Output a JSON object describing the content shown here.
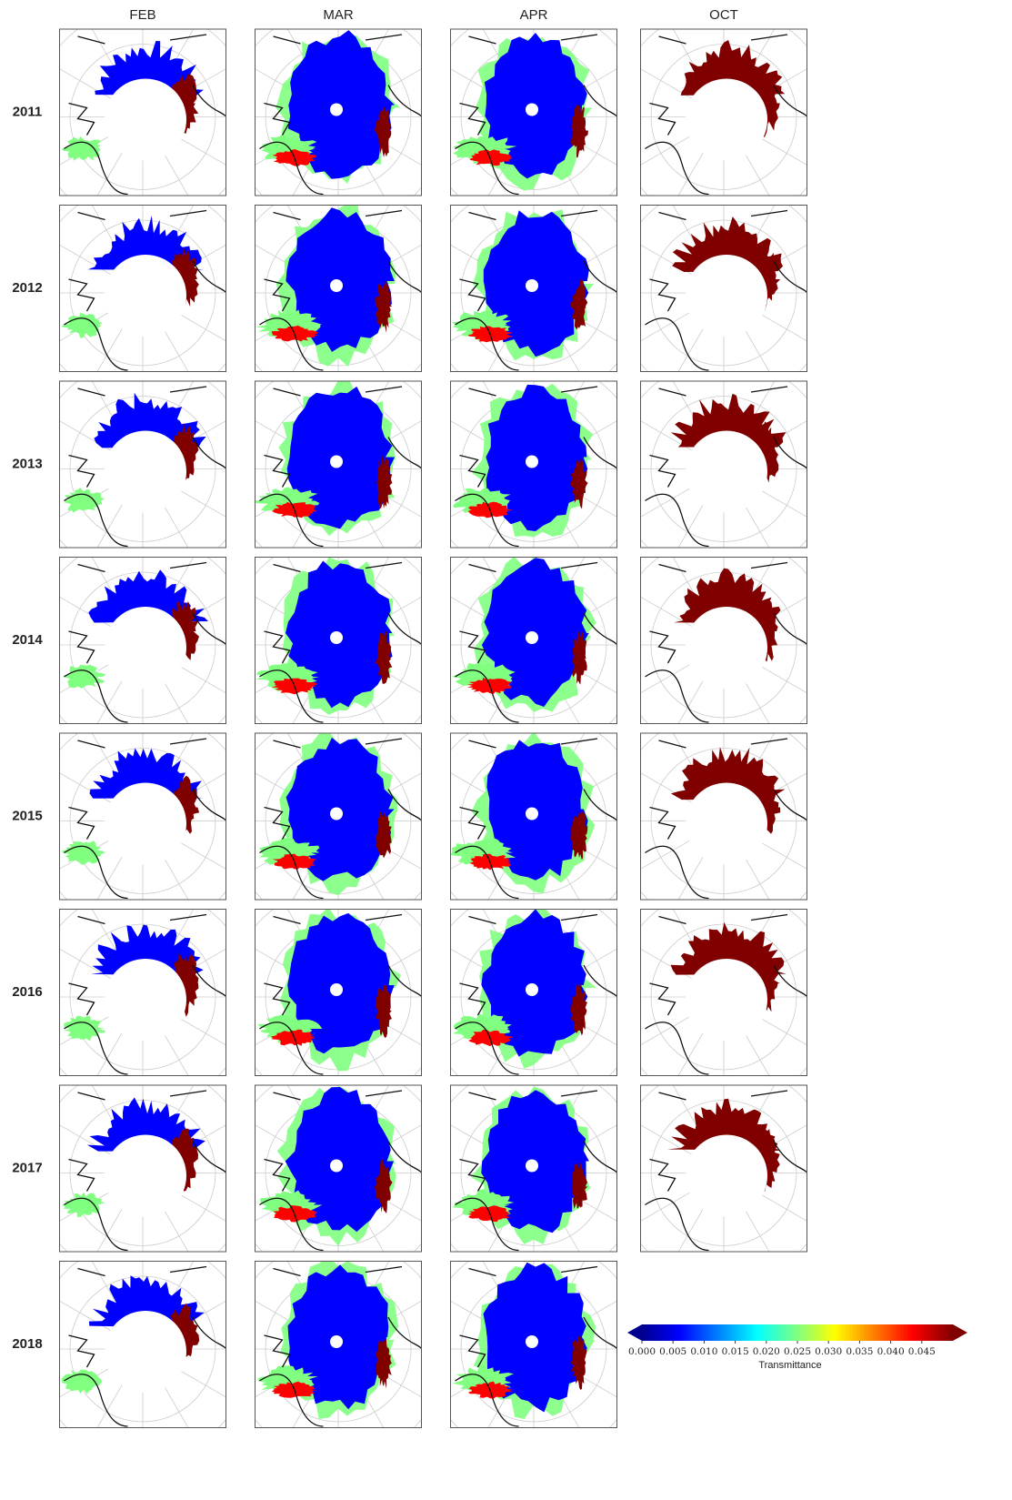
{
  "columns": [
    "FEB",
    "MAR",
    "APR",
    "OCT"
  ],
  "rows": [
    "2011",
    "2012",
    "2013",
    "2014",
    "2015",
    "2016",
    "2017",
    "2018"
  ],
  "colorbar": {
    "label": "Transmittance",
    "colormap": "jet",
    "lim": [
      0,
      0.05
    ],
    "ticks": [
      {
        "value": 0,
        "label": "0.000"
      },
      0.005,
      {
        "value": 0.01,
        "label": "0.010"
      },
      0.015,
      {
        "value": 0.02,
        "label": "0.020"
      },
      0.025,
      {
        "value": 0.03,
        "label": "0.030"
      },
      0.035,
      {
        "value": 0.04,
        "label": "0.040"
      },
      0.045
    ]
  }
}
